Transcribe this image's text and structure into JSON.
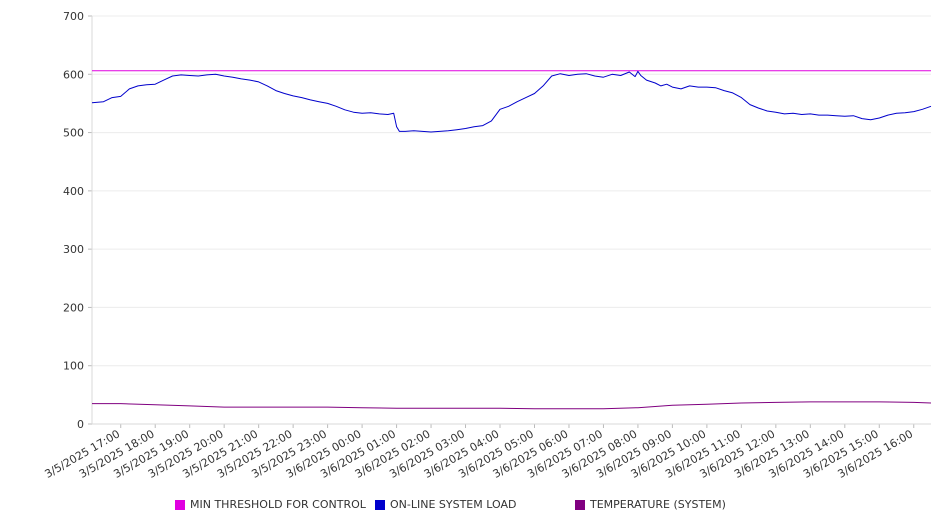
{
  "chart_data": {
    "type": "line",
    "y_ticks": [
      0,
      100,
      200,
      300,
      400,
      500,
      600,
      700
    ],
    "ylim": [
      0,
      700
    ],
    "x_ticks": [
      "3/5/2025 17:00",
      "3/5/2025 18:00",
      "3/5/2025 19:00",
      "3/5/2025 20:00",
      "3/5/2025 21:00",
      "3/5/2025 22:00",
      "3/5/2025 23:00",
      "3/6/2025 00:00",
      "3/6/2025 01:00",
      "3/6/2025 02:00",
      "3/6/2025 03:00",
      "3/6/2025 04:00",
      "3/6/2025 05:00",
      "3/6/2025 06:00",
      "3/6/2025 07:00",
      "3/6/2025 08:00",
      "3/6/2025 09:00",
      "3/6/2025 10:00",
      "3/6/2025 11:00",
      "3/6/2025 12:00",
      "3/6/2025 13:00",
      "3/6/2025 14:00",
      "3/6/2025 15:00",
      "3/6/2025 16:00"
    ],
    "grid": true,
    "legend_position": "bottom",
    "series": [
      {
        "name": "MIN THRESHOLD FOR CONTROL",
        "color": "#e000e0",
        "x": [
          "3/5/2025 16:10",
          "3/6/2025 16:30"
        ],
        "values": [
          606,
          606
        ]
      },
      {
        "name": "ON-LINE SYSTEM LOAD",
        "color": "#0000cc",
        "x": [
          "3/5/2025 16:10",
          "3/5/2025 16:30",
          "3/5/2025 16:45",
          "3/5/2025 17:00",
          "3/5/2025 17:15",
          "3/5/2025 17:30",
          "3/5/2025 17:45",
          "3/5/2025 18:00",
          "3/5/2025 18:15",
          "3/5/2025 18:30",
          "3/5/2025 18:45",
          "3/5/2025 19:00",
          "3/5/2025 19:15",
          "3/5/2025 19:30",
          "3/5/2025 19:45",
          "3/5/2025 20:00",
          "3/5/2025 20:15",
          "3/5/2025 20:30",
          "3/5/2025 20:45",
          "3/5/2025 21:00",
          "3/5/2025 21:15",
          "3/5/2025 21:30",
          "3/5/2025 21:45",
          "3/5/2025 22:00",
          "3/5/2025 22:15",
          "3/5/2025 22:30",
          "3/5/2025 22:45",
          "3/5/2025 23:00",
          "3/5/2025 23:15",
          "3/5/2025 23:30",
          "3/5/2025 23:45",
          "3/6/2025 00:00",
          "3/6/2025 00:15",
          "3/6/2025 00:30",
          "3/6/2025 00:45",
          "3/6/2025 00:55",
          "3/6/2025 01:00",
          "3/6/2025 01:05",
          "3/6/2025 01:15",
          "3/6/2025 01:30",
          "3/6/2025 01:45",
          "3/6/2025 02:00",
          "3/6/2025 02:15",
          "3/6/2025 02:30",
          "3/6/2025 02:45",
          "3/6/2025 03:00",
          "3/6/2025 03:15",
          "3/6/2025 03:30",
          "3/6/2025 03:45",
          "3/6/2025 04:00",
          "3/6/2025 04:15",
          "3/6/2025 04:30",
          "3/6/2025 04:45",
          "3/6/2025 05:00",
          "3/6/2025 05:15",
          "3/6/2025 05:30",
          "3/6/2025 05:45",
          "3/6/2025 06:00",
          "3/6/2025 06:15",
          "3/6/2025 06:30",
          "3/6/2025 06:45",
          "3/6/2025 07:00",
          "3/6/2025 07:15",
          "3/6/2025 07:30",
          "3/6/2025 07:45",
          "3/6/2025 07:55",
          "3/6/2025 08:00",
          "3/6/2025 08:05",
          "3/6/2025 08:15",
          "3/6/2025 08:30",
          "3/6/2025 08:40",
          "3/6/2025 08:50",
          "3/6/2025 09:00",
          "3/6/2025 09:15",
          "3/6/2025 09:30",
          "3/6/2025 09:45",
          "3/6/2025 10:00",
          "3/6/2025 10:15",
          "3/6/2025 10:30",
          "3/6/2025 10:45",
          "3/6/2025 11:00",
          "3/6/2025 11:15",
          "3/6/2025 11:30",
          "3/6/2025 11:45",
          "3/6/2025 12:00",
          "3/6/2025 12:15",
          "3/6/2025 12:30",
          "3/6/2025 12:45",
          "3/6/2025 13:00",
          "3/6/2025 13:15",
          "3/6/2025 13:30",
          "3/6/2025 13:45",
          "3/6/2025 14:00",
          "3/6/2025 14:15",
          "3/6/2025 14:30",
          "3/6/2025 14:45",
          "3/6/2025 15:00",
          "3/6/2025 15:15",
          "3/6/2025 15:30",
          "3/6/2025 15:45",
          "3/6/2025 16:00",
          "3/6/2025 16:15",
          "3/6/2025 16:30"
        ],
        "values": [
          551,
          553,
          560,
          562,
          575,
          580,
          582,
          583,
          590,
          597,
          599,
          598,
          597,
          599,
          600,
          597,
          595,
          592,
          590,
          587,
          580,
          572,
          567,
          563,
          560,
          556,
          553,
          550,
          545,
          539,
          535,
          533,
          534,
          532,
          531,
          533,
          510,
          502,
          502,
          503,
          502,
          501,
          502,
          503,
          505,
          507,
          510,
          512,
          520,
          540,
          545,
          553,
          560,
          567,
          580,
          597,
          601,
          598,
          600,
          601,
          597,
          595,
          600,
          598,
          604,
          596,
          605,
          598,
          590,
          585,
          580,
          583,
          578,
          575,
          580,
          578,
          578,
          577,
          572,
          568,
          560,
          548,
          542,
          537,
          535,
          532,
          533,
          531,
          532,
          530,
          530,
          529,
          528,
          529,
          524,
          522,
          525,
          530,
          533,
          534,
          536,
          540,
          545
        ]
      },
      {
        "name": "TEMPERATURE (SYSTEM)",
        "color": "#800080",
        "x": [
          "3/5/2025 16:10",
          "3/5/2025 17:00",
          "3/5/2025 18:00",
          "3/5/2025 19:00",
          "3/5/2025 20:00",
          "3/5/2025 21:00",
          "3/5/2025 22:00",
          "3/5/2025 23:00",
          "3/6/2025 00:00",
          "3/6/2025 01:00",
          "3/6/2025 02:00",
          "3/6/2025 03:00",
          "3/6/2025 04:00",
          "3/6/2025 05:00",
          "3/6/2025 06:00",
          "3/6/2025 07:00",
          "3/6/2025 08:00",
          "3/6/2025 09:00",
          "3/6/2025 10:00",
          "3/6/2025 11:00",
          "3/6/2025 12:00",
          "3/6/2025 13:00",
          "3/6/2025 14:00",
          "3/6/2025 15:00",
          "3/6/2025 16:00",
          "3/6/2025 16:30"
        ],
        "values": [
          35,
          35,
          33,
          31,
          29,
          29,
          29,
          29,
          28,
          27,
          27,
          27,
          27,
          26,
          26,
          26,
          28,
          32,
          34,
          36,
          37,
          38,
          38,
          38,
          37,
          36
        ]
      }
    ]
  }
}
